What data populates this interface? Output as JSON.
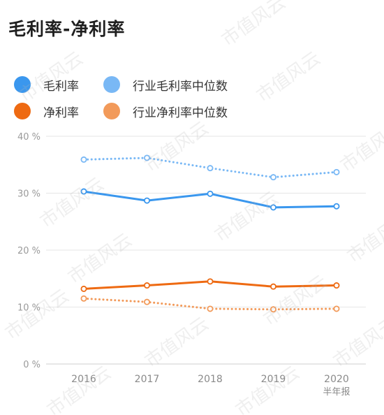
{
  "title": "毛利率-净利率",
  "watermark": "市值风云",
  "legend": [
    {
      "label": "毛利率",
      "color": "#3a97ee"
    },
    {
      "label": "行业毛利率中位数",
      "color": "#79b8f5"
    },
    {
      "label": "净利率",
      "color": "#ee6a12"
    },
    {
      "label": "行业净利率中位数",
      "color": "#f29a5a"
    }
  ],
  "chart_data": {
    "type": "line",
    "title": "毛利率-净利率",
    "categories": [
      "2016",
      "2017",
      "2018",
      "2019",
      "2020"
    ],
    "category_sublabels": [
      "",
      "",
      "",
      "",
      "半年报"
    ],
    "ylim": [
      0,
      40
    ],
    "yticks": [
      "0 %",
      "10 %",
      "20 %",
      "30 %",
      "40 %"
    ],
    "ytick_values": [
      0,
      10,
      20,
      30,
      40
    ],
    "grid": true,
    "legend_position": "top-left",
    "series": [
      {
        "name": "毛利率",
        "color": "#3a97ee",
        "style": "solid",
        "values": [
          30.3,
          28.7,
          29.9,
          27.5,
          27.7
        ]
      },
      {
        "name": "行业毛利率中位数",
        "color": "#79b8f5",
        "style": "dotted",
        "values": [
          35.9,
          36.2,
          34.4,
          32.8,
          33.7
        ]
      },
      {
        "name": "净利率",
        "color": "#ee6a12",
        "style": "solid",
        "values": [
          13.2,
          13.8,
          14.5,
          13.6,
          13.8
        ]
      },
      {
        "name": "行业净利率中位数",
        "color": "#f29a5a",
        "style": "dotted",
        "values": [
          11.5,
          10.9,
          9.7,
          9.6,
          9.7
        ]
      }
    ]
  }
}
